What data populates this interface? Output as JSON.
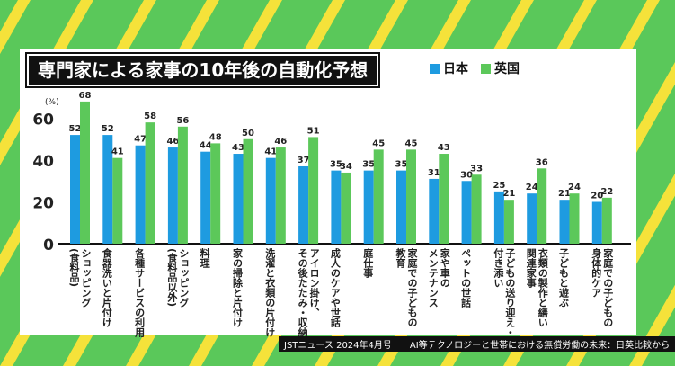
{
  "title": "専門家による家事の10年後の自動化予想",
  "footer": "JSTニュース 2024年4月号　　AI等テクノロジーと世帯における無償労働の未来：日英比較から",
  "chart_data": {
    "type": "bar",
    "title": "専門家による家事の10年後の自動化予想",
    "ylabel": "(%)",
    "ylim": [
      0,
      65
    ],
    "yticks": [
      0,
      20,
      40,
      60
    ],
    "grid": false,
    "legend": "top-right",
    "categories": [
      "ショッピング\n(食料品)",
      "食器洗いと片付け",
      "各種サービスの利用",
      "ショッピング\n(食料品以外)",
      "料理",
      "家の掃除と片付け",
      "洗濯と衣類の片付け",
      "アイロン掛け、\nその後たたみ・収納",
      "成人のケアや世話",
      "庭仕事",
      "家庭での子どもの\n教育",
      "家や車の\nメンテナンス",
      "ペットの世話",
      "子どもの送り迎え・\n付き添い",
      "衣類の製作と繕い\n関連家事",
      "子どもと遊ぶ",
      "家庭での子どもの\n身体的ケア"
    ],
    "series": [
      {
        "name": "日本",
        "color": "#1e9be0",
        "values": [
          52,
          52,
          47,
          46,
          44,
          43,
          41,
          37,
          35,
          35,
          35,
          31,
          30,
          25,
          24,
          21,
          20
        ]
      },
      {
        "name": "英国",
        "color": "#5cc85a",
        "values": [
          68,
          41,
          58,
          56,
          48,
          50,
          46,
          51,
          34,
          45,
          45,
          43,
          33,
          21,
          36,
          24,
          22
        ]
      }
    ]
  }
}
